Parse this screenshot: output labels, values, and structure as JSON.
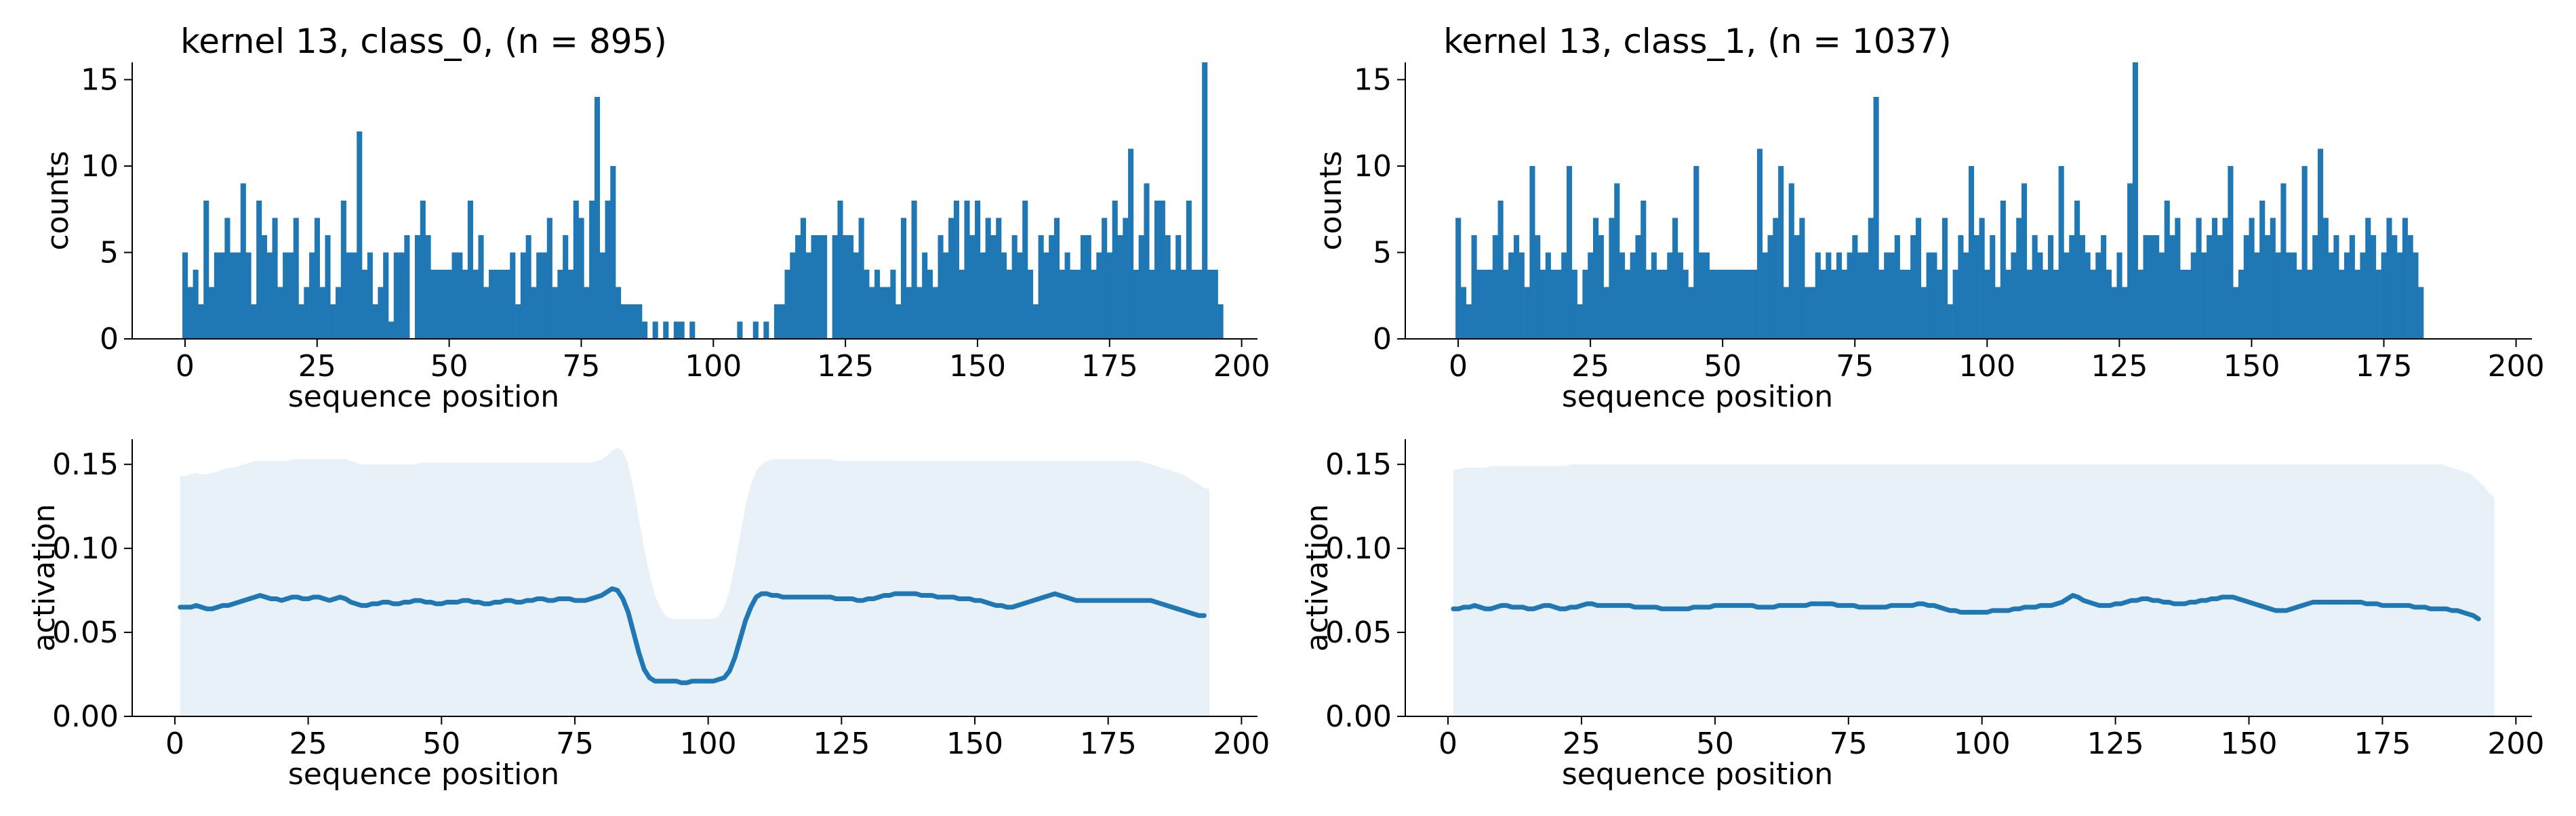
{
  "colors": {
    "bar": "#1f77b4",
    "line": "#1f77b4",
    "band": "#e8f0f8",
    "axis": "#000000"
  },
  "chart_data": [
    {
      "id": "hist_class0",
      "type": "bar",
      "title": "kernel 13, class_0, (n = 895)",
      "xlabel": "sequence position",
      "ylabel": "counts",
      "xlim": [
        -10,
        203
      ],
      "ylim": [
        0,
        16
      ],
      "xticks": [
        "0",
        "25",
        "50",
        "75",
        "100",
        "125",
        "150",
        "175",
        "200"
      ],
      "yticks": [
        "0",
        "5",
        "10",
        "15"
      ],
      "grid": false,
      "x_start": 0,
      "values": [
        5,
        3,
        4,
        2,
        8,
        3,
        5,
        5,
        7,
        5,
        5,
        9,
        5,
        2,
        8,
        6,
        5,
        7,
        3,
        5,
        5,
        7,
        2,
        3,
        5,
        7,
        3,
        6,
        2,
        3,
        8,
        5,
        5,
        12,
        4,
        5,
        2,
        3,
        5,
        1,
        5,
        5,
        6,
        0,
        6,
        8,
        6,
        4,
        4,
        4,
        4,
        5,
        5,
        4,
        8,
        4,
        6,
        3,
        4,
        4,
        4,
        4,
        5,
        2,
        5,
        6,
        3,
        5,
        5,
        7,
        3,
        4,
        6,
        4,
        8,
        7,
        3,
        8,
        14,
        5,
        8,
        10,
        3,
        2,
        2,
        2,
        2,
        1,
        0,
        1,
        0,
        1,
        0,
        1,
        1,
        0,
        1,
        0,
        0,
        0,
        0,
        0,
        0,
        0,
        0,
        1,
        0,
        0,
        1,
        0,
        1,
        0,
        2,
        2,
        4,
        5,
        6,
        7,
        5,
        6,
        6,
        6,
        0,
        6,
        8,
        6,
        6,
        5,
        7,
        4,
        3,
        4,
        3,
        3,
        4,
        2,
        7,
        3,
        8,
        3,
        5,
        4,
        3,
        6,
        5,
        7,
        8,
        4,
        8,
        6,
        8,
        5,
        7,
        6,
        7,
        5,
        4,
        6,
        5,
        8,
        4,
        2,
        6,
        5,
        6,
        7,
        4,
        5,
        4,
        4,
        6,
        6,
        4,
        5,
        7,
        5,
        8,
        6,
        7,
        11,
        4,
        6,
        9,
        4,
        8,
        8,
        6,
        4,
        6,
        4,
        8,
        4,
        4,
        16,
        4,
        4,
        2
      ],
      "bar_x_offset": -0.5
    },
    {
      "id": "line_class0",
      "type": "line",
      "xlabel": "sequence position",
      "ylabel": "activation",
      "xlim": [
        -8,
        203
      ],
      "ylim": [
        0.0,
        0.165
      ],
      "xticks": [
        "0",
        "25",
        "50",
        "75",
        "100",
        "125",
        "150",
        "175",
        "200"
      ],
      "yticks": [
        "0.00",
        "0.05",
        "0.10",
        "0.15"
      ],
      "grid": false,
      "x_start": 1,
      "values": [
        0.065,
        0.065,
        0.065,
        0.066,
        0.065,
        0.064,
        0.064,
        0.065,
        0.066,
        0.066,
        0.067,
        0.068,
        0.069,
        0.07,
        0.071,
        0.072,
        0.071,
        0.07,
        0.07,
        0.069,
        0.07,
        0.071,
        0.071,
        0.07,
        0.07,
        0.071,
        0.071,
        0.07,
        0.069,
        0.07,
        0.071,
        0.07,
        0.068,
        0.067,
        0.066,
        0.066,
        0.067,
        0.067,
        0.068,
        0.068,
        0.067,
        0.067,
        0.068,
        0.068,
        0.069,
        0.069,
        0.068,
        0.068,
        0.067,
        0.067,
        0.068,
        0.068,
        0.068,
        0.069,
        0.069,
        0.068,
        0.068,
        0.067,
        0.067,
        0.068,
        0.068,
        0.069,
        0.069,
        0.068,
        0.068,
        0.069,
        0.069,
        0.07,
        0.07,
        0.069,
        0.069,
        0.07,
        0.07,
        0.07,
        0.069,
        0.069,
        0.069,
        0.07,
        0.071,
        0.072,
        0.074,
        0.076,
        0.075,
        0.07,
        0.062,
        0.05,
        0.038,
        0.028,
        0.023,
        0.021,
        0.021,
        0.021,
        0.021,
        0.021,
        0.02,
        0.02,
        0.021,
        0.021,
        0.021,
        0.021,
        0.021,
        0.022,
        0.023,
        0.027,
        0.035,
        0.046,
        0.057,
        0.065,
        0.071,
        0.073,
        0.073,
        0.072,
        0.072,
        0.071,
        0.071,
        0.071,
        0.071,
        0.071,
        0.071,
        0.071,
        0.071,
        0.071,
        0.071,
        0.07,
        0.07,
        0.07,
        0.07,
        0.069,
        0.069,
        0.07,
        0.07,
        0.071,
        0.072,
        0.072,
        0.073,
        0.073,
        0.073,
        0.073,
        0.073,
        0.072,
        0.072,
        0.072,
        0.071,
        0.071,
        0.071,
        0.071,
        0.07,
        0.07,
        0.07,
        0.069,
        0.069,
        0.068,
        0.067,
        0.066,
        0.066,
        0.065,
        0.065,
        0.066,
        0.067,
        0.068,
        0.069,
        0.07,
        0.071,
        0.072,
        0.073,
        0.072,
        0.071,
        0.07,
        0.069,
        0.069,
        0.069,
        0.069,
        0.069,
        0.069,
        0.069,
        0.069,
        0.069,
        0.069,
        0.069,
        0.069,
        0.069,
        0.069,
        0.069,
        0.068,
        0.067,
        0.066,
        0.065,
        0.064,
        0.063,
        0.062,
        0.061,
        0.06,
        0.06
      ],
      "band_upper": [
        0.143,
        0.143,
        0.144,
        0.145,
        0.144,
        0.144,
        0.145,
        0.146,
        0.147,
        0.148,
        0.148,
        0.149,
        0.15,
        0.151,
        0.152,
        0.152,
        0.152,
        0.152,
        0.152,
        0.152,
        0.152,
        0.153,
        0.153,
        0.153,
        0.153,
        0.153,
        0.153,
        0.153,
        0.153,
        0.153,
        0.153,
        0.153,
        0.152,
        0.151,
        0.15,
        0.15,
        0.15,
        0.15,
        0.15,
        0.15,
        0.15,
        0.15,
        0.15,
        0.15,
        0.15,
        0.151,
        0.151,
        0.151,
        0.151,
        0.151,
        0.151,
        0.151,
        0.151,
        0.151,
        0.151,
        0.151,
        0.151,
        0.151,
        0.151,
        0.151,
        0.151,
        0.151,
        0.151,
        0.151,
        0.151,
        0.151,
        0.151,
        0.151,
        0.151,
        0.151,
        0.151,
        0.151,
        0.151,
        0.151,
        0.151,
        0.151,
        0.151,
        0.151,
        0.152,
        0.153,
        0.155,
        0.158,
        0.16,
        0.158,
        0.15,
        0.135,
        0.118,
        0.1,
        0.085,
        0.072,
        0.065,
        0.06,
        0.058,
        0.058,
        0.058,
        0.058,
        0.058,
        0.058,
        0.058,
        0.058,
        0.058,
        0.06,
        0.065,
        0.075,
        0.09,
        0.108,
        0.125,
        0.138,
        0.146,
        0.15,
        0.152,
        0.153,
        0.153,
        0.153,
        0.153,
        0.153,
        0.153,
        0.153,
        0.153,
        0.153,
        0.153,
        0.153,
        0.153,
        0.152,
        0.152,
        0.152,
        0.152,
        0.152,
        0.152,
        0.152,
        0.152,
        0.152,
        0.152,
        0.152,
        0.152,
        0.152,
        0.152,
        0.152,
        0.152,
        0.152,
        0.152,
        0.152,
        0.152,
        0.152,
        0.152,
        0.152,
        0.152,
        0.152,
        0.152,
        0.152,
        0.152,
        0.152,
        0.152,
        0.152,
        0.152,
        0.152,
        0.152,
        0.152,
        0.152,
        0.152,
        0.152,
        0.152,
        0.152,
        0.152,
        0.152,
        0.152,
        0.152,
        0.152,
        0.152,
        0.152,
        0.152,
        0.152,
        0.152,
        0.152,
        0.152,
        0.152,
        0.152,
        0.152,
        0.152,
        0.152,
        0.152,
        0.151,
        0.15,
        0.149,
        0.148,
        0.147,
        0.146,
        0.145,
        0.144,
        0.142,
        0.14,
        0.138,
        0.136,
        0.135
      ]
    },
    {
      "id": "hist_class1",
      "type": "bar",
      "title": "kernel 13, class_1, (n = 1037)",
      "xlabel": "sequence position",
      "ylabel": "counts",
      "xlim": [
        -10,
        203
      ],
      "ylim": [
        0,
        16
      ],
      "xticks": [
        "0",
        "25",
        "50",
        "75",
        "100",
        "125",
        "150",
        "175",
        "200"
      ],
      "yticks": [
        "0",
        "5",
        "10",
        "15"
      ],
      "grid": false,
      "x_start": 0,
      "values": [
        7,
        3,
        2,
        6,
        4,
        4,
        4,
        6,
        8,
        4,
        5,
        6,
        5,
        3,
        10,
        6,
        4,
        5,
        4,
        4,
        5,
        10,
        4,
        2,
        4,
        5,
        7,
        6,
        3,
        7,
        9,
        5,
        4,
        5,
        6,
        8,
        4,
        5,
        4,
        4,
        5,
        7,
        5,
        4,
        3,
        10,
        5,
        5,
        4,
        4,
        4,
        4,
        4,
        4,
        4,
        4,
        4,
        11,
        5,
        6,
        7,
        10,
        3,
        9,
        6,
        7,
        3,
        3,
        5,
        4,
        5,
        4,
        5,
        4,
        5,
        6,
        5,
        5,
        7,
        14,
        4,
        5,
        5,
        6,
        4,
        4,
        6,
        7,
        3,
        5,
        5,
        4,
        7,
        2,
        4,
        6,
        5,
        10,
        6,
        7,
        4,
        6,
        3,
        8,
        4,
        5,
        7,
        9,
        4,
        6,
        5,
        4,
        6,
        4,
        10,
        5,
        6,
        8,
        6,
        5,
        4,
        5,
        6,
        4,
        3,
        5,
        3,
        9,
        16,
        4,
        6,
        6,
        6,
        5,
        8,
        6,
        7,
        4,
        4,
        5,
        7,
        5,
        6,
        7,
        6,
        7,
        10,
        3,
        4,
        6,
        7,
        5,
        8,
        6,
        7,
        5,
        9,
        5,
        5,
        4,
        10,
        4,
        6,
        11,
        7,
        5,
        6,
        4,
        5,
        6,
        4,
        5,
        7,
        6,
        4,
        5,
        7,
        6,
        5,
        7,
        6,
        5,
        3
      ],
      "bar_x_offset": -0.5
    },
    {
      "id": "line_class1",
      "type": "line",
      "xlabel": "sequence position",
      "ylabel": "activation",
      "xlim": [
        -8,
        203
      ],
      "ylim": [
        0.0,
        0.165
      ],
      "xticks": [
        "0",
        "25",
        "50",
        "75",
        "100",
        "125",
        "150",
        "175",
        "200"
      ],
      "yticks": [
        "0.00",
        "0.05",
        "0.10",
        "0.15"
      ],
      "grid": false,
      "x_start": 1,
      "values": [
        0.064,
        0.064,
        0.065,
        0.065,
        0.066,
        0.065,
        0.064,
        0.064,
        0.065,
        0.066,
        0.066,
        0.065,
        0.065,
        0.065,
        0.064,
        0.064,
        0.065,
        0.066,
        0.066,
        0.065,
        0.064,
        0.064,
        0.065,
        0.065,
        0.066,
        0.067,
        0.067,
        0.066,
        0.066,
        0.066,
        0.066,
        0.066,
        0.066,
        0.066,
        0.065,
        0.065,
        0.065,
        0.065,
        0.065,
        0.064,
        0.064,
        0.064,
        0.064,
        0.064,
        0.064,
        0.065,
        0.065,
        0.065,
        0.065,
        0.066,
        0.066,
        0.066,
        0.066,
        0.066,
        0.066,
        0.066,
        0.066,
        0.065,
        0.065,
        0.065,
        0.065,
        0.066,
        0.066,
        0.066,
        0.066,
        0.066,
        0.066,
        0.067,
        0.067,
        0.067,
        0.067,
        0.067,
        0.066,
        0.066,
        0.066,
        0.066,
        0.065,
        0.065,
        0.065,
        0.065,
        0.065,
        0.065,
        0.066,
        0.066,
        0.066,
        0.066,
        0.066,
        0.067,
        0.067,
        0.066,
        0.066,
        0.065,
        0.064,
        0.063,
        0.063,
        0.062,
        0.062,
        0.062,
        0.062,
        0.062,
        0.062,
        0.063,
        0.063,
        0.063,
        0.063,
        0.064,
        0.064,
        0.065,
        0.065,
        0.065,
        0.066,
        0.066,
        0.066,
        0.067,
        0.068,
        0.07,
        0.072,
        0.071,
        0.069,
        0.068,
        0.067,
        0.066,
        0.066,
        0.066,
        0.067,
        0.067,
        0.068,
        0.069,
        0.069,
        0.07,
        0.07,
        0.069,
        0.069,
        0.068,
        0.068,
        0.067,
        0.067,
        0.067,
        0.068,
        0.068,
        0.069,
        0.069,
        0.07,
        0.07,
        0.071,
        0.071,
        0.071,
        0.07,
        0.069,
        0.068,
        0.067,
        0.066,
        0.065,
        0.064,
        0.063,
        0.063,
        0.063,
        0.064,
        0.065,
        0.066,
        0.067,
        0.068,
        0.068,
        0.068,
        0.068,
        0.068,
        0.068,
        0.068,
        0.068,
        0.068,
        0.068,
        0.067,
        0.067,
        0.067,
        0.066,
        0.066,
        0.066,
        0.066,
        0.066,
        0.066,
        0.065,
        0.065,
        0.065,
        0.064,
        0.064,
        0.064,
        0.064,
        0.063,
        0.063,
        0.062,
        0.061,
        0.06,
        0.058
      ],
      "band_upper": [
        0.147,
        0.147,
        0.148,
        0.148,
        0.148,
        0.148,
        0.148,
        0.149,
        0.149,
        0.149,
        0.149,
        0.149,
        0.149,
        0.149,
        0.149,
        0.149,
        0.149,
        0.149,
        0.149,
        0.149,
        0.149,
        0.149,
        0.15,
        0.15,
        0.15,
        0.15,
        0.15,
        0.15,
        0.15,
        0.15,
        0.15,
        0.15,
        0.15,
        0.15,
        0.15,
        0.15,
        0.15,
        0.15,
        0.15,
        0.15,
        0.15,
        0.15,
        0.15,
        0.15,
        0.15,
        0.15,
        0.15,
        0.15,
        0.15,
        0.15,
        0.15,
        0.15,
        0.15,
        0.15,
        0.15,
        0.15,
        0.15,
        0.15,
        0.15,
        0.15,
        0.15,
        0.15,
        0.15,
        0.15,
        0.15,
        0.15,
        0.15,
        0.15,
        0.15,
        0.15,
        0.15,
        0.15,
        0.15,
        0.15,
        0.15,
        0.15,
        0.15,
        0.15,
        0.15,
        0.15,
        0.15,
        0.15,
        0.15,
        0.15,
        0.15,
        0.15,
        0.15,
        0.15,
        0.15,
        0.15,
        0.15,
        0.15,
        0.15,
        0.15,
        0.15,
        0.15,
        0.15,
        0.15,
        0.15,
        0.15,
        0.15,
        0.15,
        0.15,
        0.15,
        0.15,
        0.15,
        0.15,
        0.15,
        0.15,
        0.15,
        0.15,
        0.15,
        0.15,
        0.15,
        0.15,
        0.15,
        0.15,
        0.15,
        0.15,
        0.15,
        0.15,
        0.15,
        0.15,
        0.15,
        0.15,
        0.15,
        0.15,
        0.15,
        0.15,
        0.15,
        0.15,
        0.15,
        0.15,
        0.15,
        0.15,
        0.15,
        0.15,
        0.15,
        0.15,
        0.15,
        0.15,
        0.15,
        0.15,
        0.15,
        0.15,
        0.15,
        0.15,
        0.15,
        0.15,
        0.15,
        0.15,
        0.15,
        0.15,
        0.15,
        0.15,
        0.15,
        0.15,
        0.15,
        0.15,
        0.15,
        0.15,
        0.15,
        0.15,
        0.15,
        0.15,
        0.15,
        0.15,
        0.15,
        0.15,
        0.15,
        0.15,
        0.15,
        0.15,
        0.15,
        0.15,
        0.15,
        0.15,
        0.15,
        0.15,
        0.15,
        0.15,
        0.15,
        0.15,
        0.15,
        0.15,
        0.15,
        0.149,
        0.148,
        0.147,
        0.146,
        0.145,
        0.143,
        0.14,
        0.137,
        0.133,
        0.13
      ]
    }
  ]
}
